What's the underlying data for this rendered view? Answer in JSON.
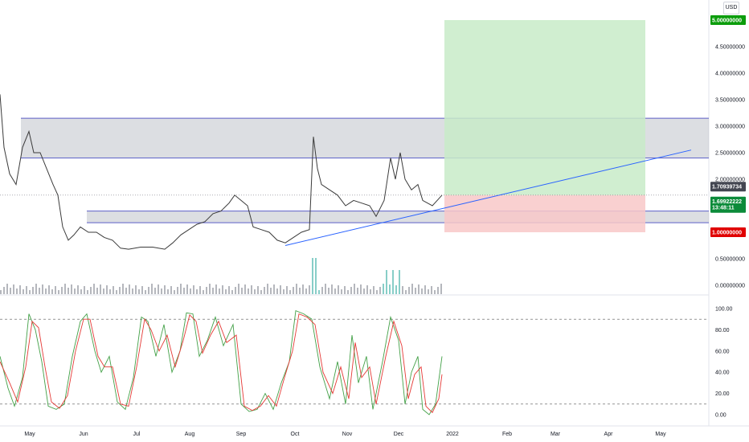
{
  "currency_button": "USD",
  "colors": {
    "up": "#26a69a",
    "down": "#ef5350",
    "level_line": "#5b5fc7",
    "zone_fill": "#b2b5be",
    "trend": "#2962ff",
    "target_fill": "#c8ebc8",
    "stop_fill": "#f8c8c8",
    "stoch_k": "#43a047",
    "stoch_d": "#e53935",
    "volume": "#787b86"
  },
  "price_labels": {
    "target": "5.00000000",
    "current": "1.70939734",
    "close": "1.69922222",
    "countdown": "13:48:11",
    "stop": "1.00000000"
  },
  "chart_data": {
    "type": "line",
    "x_labels": [
      "May",
      "Jun",
      "Jul",
      "Aug",
      "Sep",
      "Oct",
      "Nov",
      "Dec",
      "2022",
      "Feb",
      "Mar",
      "Apr",
      "May"
    ],
    "price_axis": {
      "ticks": [
        "0.00000000",
        "0.50000000",
        "1.00000000",
        "1.50000000",
        "2.00000000",
        "2.50000000",
        "3.00000000",
        "3.50000000",
        "4.00000000",
        "4.50000000",
        "5.00000000"
      ],
      "ylim": [
        0,
        5
      ]
    },
    "oscillator_axis": {
      "ticks": [
        "0.00",
        "20.00",
        "40.00",
        "60.00",
        "80.00",
        "100.00"
      ],
      "ylim": [
        0,
        100
      ]
    },
    "price_series": [
      {
        "x": 0,
        "y": 3.6
      },
      {
        "x": 5,
        "y": 2.6
      },
      {
        "x": 12,
        "y": 2.1
      },
      {
        "x": 20,
        "y": 1.9
      },
      {
        "x": 28,
        "y": 2.6
      },
      {
        "x": 36,
        "y": 2.9
      },
      {
        "x": 42,
        "y": 2.5
      },
      {
        "x": 50,
        "y": 2.5
      },
      {
        "x": 58,
        "y": 2.2
      },
      {
        "x": 66,
        "y": 1.9
      },
      {
        "x": 72,
        "y": 1.7
      },
      {
        "x": 78,
        "y": 1.1
      },
      {
        "x": 85,
        "y": 0.85
      },
      {
        "x": 92,
        "y": 0.95
      },
      {
        "x": 100,
        "y": 1.1
      },
      {
        "x": 110,
        "y": 1.0
      },
      {
        "x": 120,
        "y": 1.0
      },
      {
        "x": 130,
        "y": 0.9
      },
      {
        "x": 140,
        "y": 0.85
      },
      {
        "x": 150,
        "y": 0.7
      },
      {
        "x": 160,
        "y": 0.68
      },
      {
        "x": 175,
        "y": 0.72
      },
      {
        "x": 190,
        "y": 0.72
      },
      {
        "x": 205,
        "y": 0.68
      },
      {
        "x": 215,
        "y": 0.8
      },
      {
        "x": 225,
        "y": 0.95
      },
      {
        "x": 235,
        "y": 1.05
      },
      {
        "x": 245,
        "y": 1.15
      },
      {
        "x": 255,
        "y": 1.2
      },
      {
        "x": 265,
        "y": 1.35
      },
      {
        "x": 275,
        "y": 1.4
      },
      {
        "x": 285,
        "y": 1.55
      },
      {
        "x": 292,
        "y": 1.7
      },
      {
        "x": 300,
        "y": 1.6
      },
      {
        "x": 308,
        "y": 1.5
      },
      {
        "x": 315,
        "y": 1.1
      },
      {
        "x": 325,
        "y": 1.05
      },
      {
        "x": 335,
        "y": 1.0
      },
      {
        "x": 345,
        "y": 0.85
      },
      {
        "x": 355,
        "y": 0.8
      },
      {
        "x": 365,
        "y": 0.9
      },
      {
        "x": 375,
        "y": 1.0
      },
      {
        "x": 385,
        "y": 1.05
      },
      {
        "x": 390,
        "y": 2.8
      },
      {
        "x": 395,
        "y": 2.2
      },
      {
        "x": 400,
        "y": 1.9
      },
      {
        "x": 410,
        "y": 1.8
      },
      {
        "x": 420,
        "y": 1.7
      },
      {
        "x": 430,
        "y": 1.5
      },
      {
        "x": 440,
        "y": 1.6
      },
      {
        "x": 450,
        "y": 1.55
      },
      {
        "x": 460,
        "y": 1.5
      },
      {
        "x": 468,
        "y": 1.3
      },
      {
        "x": 478,
        "y": 1.6
      },
      {
        "x": 486,
        "y": 2.4
      },
      {
        "x": 492,
        "y": 2.0
      },
      {
        "x": 498,
        "y": 2.5
      },
      {
        "x": 504,
        "y": 2.0
      },
      {
        "x": 512,
        "y": 1.8
      },
      {
        "x": 520,
        "y": 1.9
      },
      {
        "x": 526,
        "y": 1.6
      },
      {
        "x": 532,
        "y": 1.55
      },
      {
        "x": 538,
        "y": 1.5
      },
      {
        "x": 544,
        "y": 1.6
      },
      {
        "x": 550,
        "y": 1.7
      }
    ],
    "stoch_k": [
      {
        "x": 0,
        "y": 55
      },
      {
        "x": 10,
        "y": 25
      },
      {
        "x": 18,
        "y": 8
      },
      {
        "x": 28,
        "y": 35
      },
      {
        "x": 36,
        "y": 95
      },
      {
        "x": 44,
        "y": 80
      },
      {
        "x": 52,
        "y": 50
      },
      {
        "x": 60,
        "y": 8
      },
      {
        "x": 70,
        "y": 5
      },
      {
        "x": 80,
        "y": 10
      },
      {
        "x": 90,
        "y": 55
      },
      {
        "x": 100,
        "y": 88
      },
      {
        "x": 108,
        "y": 95
      },
      {
        "x": 118,
        "y": 60
      },
      {
        "x": 126,
        "y": 40
      },
      {
        "x": 136,
        "y": 55
      },
      {
        "x": 146,
        "y": 12
      },
      {
        "x": 156,
        "y": 5
      },
      {
        "x": 166,
        "y": 35
      },
      {
        "x": 176,
        "y": 92
      },
      {
        "x": 184,
        "y": 88
      },
      {
        "x": 194,
        "y": 55
      },
      {
        "x": 204,
        "y": 85
      },
      {
        "x": 214,
        "y": 40
      },
      {
        "x": 224,
        "y": 60
      },
      {
        "x": 232,
        "y": 96
      },
      {
        "x": 240,
        "y": 95
      },
      {
        "x": 248,
        "y": 55
      },
      {
        "x": 258,
        "y": 70
      },
      {
        "x": 268,
        "y": 92
      },
      {
        "x": 278,
        "y": 65
      },
      {
        "x": 290,
        "y": 85
      },
      {
        "x": 300,
        "y": 10
      },
      {
        "x": 310,
        "y": 3
      },
      {
        "x": 320,
        "y": 5
      },
      {
        "x": 330,
        "y": 20
      },
      {
        "x": 340,
        "y": 5
      },
      {
        "x": 350,
        "y": 30
      },
      {
        "x": 360,
        "y": 50
      },
      {
        "x": 368,
        "y": 98
      },
      {
        "x": 378,
        "y": 95
      },
      {
        "x": 388,
        "y": 90
      },
      {
        "x": 398,
        "y": 45
      },
      {
        "x": 410,
        "y": 15
      },
      {
        "x": 420,
        "y": 50
      },
      {
        "x": 430,
        "y": 10
      },
      {
        "x": 438,
        "y": 75
      },
      {
        "x": 446,
        "y": 30
      },
      {
        "x": 456,
        "y": 55
      },
      {
        "x": 464,
        "y": 5
      },
      {
        "x": 476,
        "y": 50
      },
      {
        "x": 486,
        "y": 92
      },
      {
        "x": 496,
        "y": 70
      },
      {
        "x": 504,
        "y": 10
      },
      {
        "x": 512,
        "y": 40
      },
      {
        "x": 520,
        "y": 55
      },
      {
        "x": 526,
        "y": 5
      },
      {
        "x": 534,
        "y": 0
      },
      {
        "x": 542,
        "y": 10
      },
      {
        "x": 550,
        "y": 55
      }
    ],
    "stoch_d": [
      {
        "x": 0,
        "y": 50
      },
      {
        "x": 12,
        "y": 30
      },
      {
        "x": 22,
        "y": 12
      },
      {
        "x": 32,
        "y": 45
      },
      {
        "x": 40,
        "y": 88
      },
      {
        "x": 48,
        "y": 82
      },
      {
        "x": 56,
        "y": 45
      },
      {
        "x": 64,
        "y": 12
      },
      {
        "x": 74,
        "y": 6
      },
      {
        "x": 84,
        "y": 18
      },
      {
        "x": 94,
        "y": 60
      },
      {
        "x": 104,
        "y": 90
      },
      {
        "x": 112,
        "y": 90
      },
      {
        "x": 122,
        "y": 55
      },
      {
        "x": 130,
        "y": 45
      },
      {
        "x": 140,
        "y": 45
      },
      {
        "x": 150,
        "y": 10
      },
      {
        "x": 160,
        "y": 8
      },
      {
        "x": 170,
        "y": 45
      },
      {
        "x": 180,
        "y": 90
      },
      {
        "x": 188,
        "y": 80
      },
      {
        "x": 198,
        "y": 60
      },
      {
        "x": 208,
        "y": 75
      },
      {
        "x": 218,
        "y": 45
      },
      {
        "x": 228,
        "y": 70
      },
      {
        "x": 236,
        "y": 94
      },
      {
        "x": 244,
        "y": 88
      },
      {
        "x": 252,
        "y": 58
      },
      {
        "x": 262,
        "y": 75
      },
      {
        "x": 272,
        "y": 88
      },
      {
        "x": 282,
        "y": 68
      },
      {
        "x": 294,
        "y": 75
      },
      {
        "x": 304,
        "y": 8
      },
      {
        "x": 314,
        "y": 4
      },
      {
        "x": 324,
        "y": 8
      },
      {
        "x": 334,
        "y": 18
      },
      {
        "x": 344,
        "y": 8
      },
      {
        "x": 354,
        "y": 35
      },
      {
        "x": 364,
        "y": 60
      },
      {
        "x": 372,
        "y": 95
      },
      {
        "x": 382,
        "y": 92
      },
      {
        "x": 392,
        "y": 85
      },
      {
        "x": 402,
        "y": 40
      },
      {
        "x": 414,
        "y": 20
      },
      {
        "x": 424,
        "y": 45
      },
      {
        "x": 434,
        "y": 15
      },
      {
        "x": 442,
        "y": 68
      },
      {
        "x": 450,
        "y": 35
      },
      {
        "x": 460,
        "y": 45
      },
      {
        "x": 468,
        "y": 10
      },
      {
        "x": 480,
        "y": 55
      },
      {
        "x": 490,
        "y": 88
      },
      {
        "x": 500,
        "y": 65
      },
      {
        "x": 508,
        "y": 15
      },
      {
        "x": 516,
        "y": 38
      },
      {
        "x": 524,
        "y": 45
      },
      {
        "x": 530,
        "y": 8
      },
      {
        "x": 538,
        "y": 2
      },
      {
        "x": 546,
        "y": 15
      },
      {
        "x": 550,
        "y": 38
      }
    ],
    "overbought": 90,
    "oversold": 10,
    "resistance_zone": [
      2.4,
      3.15
    ],
    "support_zone": [
      1.18,
      1.4
    ],
    "long_position": {
      "entry": 1.7,
      "target": 5.0,
      "stop": 1.0
    },
    "trendline": [
      {
        "x": 355,
        "y": 0.75
      },
      {
        "x": 860,
        "y": 2.55
      }
    ]
  }
}
